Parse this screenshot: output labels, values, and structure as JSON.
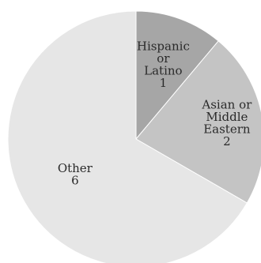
{
  "chart_data": {
    "type": "pie",
    "start_angle_deg": 0,
    "direction": "clockwise",
    "slices": [
      {
        "label_lines": [
          "Hispanic",
          "or",
          "Latino",
          "1"
        ],
        "category": "Hispanic or Latino",
        "value": 1,
        "color": "#a6a6a6"
      },
      {
        "label_lines": [
          "Asian or",
          "Middle",
          "Eastern",
          "2"
        ],
        "category": "Asian or Middle Eastern",
        "value": 2,
        "color": "#c4c4c4"
      },
      {
        "label_lines": [
          "Other",
          "6"
        ],
        "category": "Other",
        "value": 6,
        "color": "#e6e6e6"
      }
    ]
  }
}
